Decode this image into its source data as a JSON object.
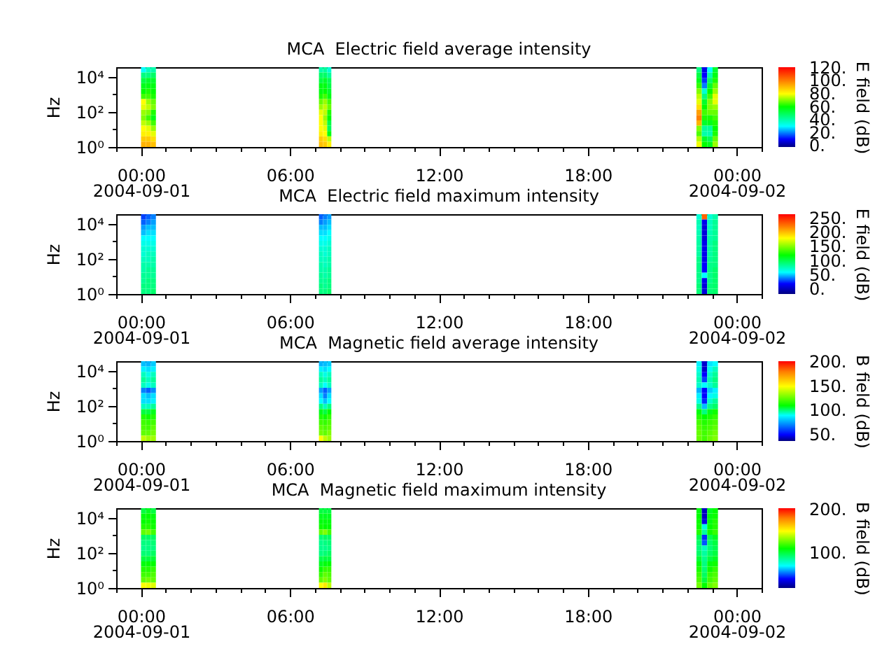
{
  "chart_data": [
    {
      "type": "heatmap",
      "title": "MCA  Electric field average intensity",
      "ylabel": "Hz",
      "clabel": "E field (dB)",
      "log": "y",
      "x": [
        "2004-09-01T00:06",
        "2004-09-01T00:18",
        "2004-09-01T00:30",
        "2004-09-01T00:42",
        "2004-09-01T07:05",
        "2004-09-01T07:15",
        "2004-09-01T07:25",
        "2004-09-01T07:35",
        "2004-09-01T07:45",
        "2004-09-01T22:16",
        "2004-09-01T22:29",
        "2004-09-01T22:42",
        "2004-09-01T22:55",
        "2004-09-01T23:08"
      ],
      "xlim": [
        "2004-08-31T23:00",
        "2004-09-02T01:00"
      ],
      "xticks": [
        {
          "value": "2004-08-31T23:00",
          "label": null
        },
        {
          "value": "2004-09-01T00:00",
          "label": "00:00\n2004-09-01"
        },
        {
          "value": "2004-09-01T01:00",
          "label": null
        },
        {
          "value": "2004-09-01T02:00",
          "label": null
        },
        {
          "value": "2004-09-01T03:00",
          "label": null
        },
        {
          "value": "2004-09-01T04:00",
          "label": null
        },
        {
          "value": "2004-09-01T05:00",
          "label": null
        },
        {
          "value": "2004-09-01T06:00",
          "label": "06:00"
        },
        {
          "value": "2004-09-01T07:00",
          "label": null
        },
        {
          "value": "2004-09-01T08:00",
          "label": null
        },
        {
          "value": "2004-09-01T09:00",
          "label": null
        },
        {
          "value": "2004-09-01T10:00",
          "label": null
        },
        {
          "value": "2004-09-01T11:00",
          "label": null
        },
        {
          "value": "2004-09-01T12:00",
          "label": "12:00"
        },
        {
          "value": "2004-09-01T13:00",
          "label": null
        },
        {
          "value": "2004-09-01T14:00",
          "label": null
        },
        {
          "value": "2004-09-01T15:00",
          "label": null
        },
        {
          "value": "2004-09-01T16:00",
          "label": null
        },
        {
          "value": "2004-09-01T17:00",
          "label": null
        },
        {
          "value": "2004-09-01T18:00",
          "label": "18:00"
        },
        {
          "value": "2004-09-01T19:00",
          "label": null
        },
        {
          "value": "2004-09-01T20:00",
          "label": null
        },
        {
          "value": "2004-09-01T21:00",
          "label": null
        },
        {
          "value": "2004-09-01T22:00",
          "label": null
        },
        {
          "value": "2004-09-01T23:00",
          "label": null
        },
        {
          "value": "2004-09-02T00:00",
          "label": "00:00\n2004-09-02"
        },
        {
          "value": "2004-09-02T01:00",
          "label": null
        }
      ],
      "ylim": [
        1,
        35000
      ],
      "yticks": [
        {
          "value": 1,
          "label": "10⁰"
        },
        {
          "value": 10,
          "label": null
        },
        {
          "value": 100,
          "label": "10²"
        },
        {
          "value": 1000,
          "label": null
        },
        {
          "value": 10000,
          "label": "10⁴"
        }
      ],
      "clim": [
        -2,
        121
      ],
      "cticks": [
        {
          "value": 0,
          "label": "0."
        },
        {
          "value": 20,
          "label": "20."
        },
        {
          "value": 40,
          "label": "40."
        },
        {
          "value": 60,
          "label": "60."
        },
        {
          "value": 80,
          "label": "80."
        },
        {
          "value": 100,
          "label": "100."
        },
        {
          "value": 120,
          "label": "120."
        }
      ],
      "cells": [
        [
          30,
          38,
          40,
          null,
          null,
          40,
          42,
          35,
          null,
          null,
          45,
          8,
          30,
          55
        ],
        [
          45,
          45,
          48,
          null,
          null,
          48,
          48,
          42,
          null,
          null,
          52,
          10,
          40,
          58
        ],
        [
          52,
          55,
          55,
          null,
          null,
          52,
          55,
          50,
          null,
          null,
          57,
          14,
          48,
          62
        ],
        [
          57,
          58,
          58,
          null,
          null,
          58,
          58,
          52,
          null,
          null,
          64,
          20,
          55,
          68
        ],
        [
          60,
          62,
          60,
          null,
          null,
          58,
          60,
          55,
          null,
          null,
          70,
          35,
          60,
          72
        ],
        [
          65,
          65,
          62,
          null,
          null,
          62,
          65,
          58,
          null,
          null,
          75,
          45,
          65,
          78
        ],
        [
          80,
          72,
          68,
          null,
          null,
          68,
          72,
          65,
          null,
          null,
          78,
          55,
          70,
          78
        ],
        [
          78,
          75,
          70,
          null,
          null,
          72,
          75,
          68,
          null,
          null,
          85,
          60,
          70,
          72
        ],
        [
          72,
          70,
          62,
          null,
          null,
          78,
          75,
          62,
          null,
          null,
          95,
          65,
          68,
          68
        ],
        [
          70,
          65,
          58,
          null,
          null,
          80,
          72,
          60,
          null,
          null,
          100,
          62,
          62,
          65
        ],
        [
          75,
          72,
          65,
          null,
          null,
          80,
          75,
          52,
          null,
          null,
          92,
          55,
          57,
          62
        ],
        [
          80,
          78,
          72,
          null,
          null,
          80,
          78,
          50,
          null,
          null,
          70,
          42,
          42,
          60
        ],
        [
          82,
          82,
          78,
          null,
          null,
          82,
          80,
          58,
          null,
          null,
          66,
          40,
          40,
          62
        ],
        [
          88,
          88,
          85,
          null,
          null,
          88,
          85,
          75,
          null,
          null,
          74,
          55,
          50,
          68
        ],
        [
          92,
          92,
          90,
          null,
          null,
          90,
          88,
          82,
          null,
          null,
          79,
          60,
          57,
          72
        ]
      ]
    },
    {
      "type": "heatmap",
      "title": "MCA  Electric field maximum intensity",
      "ylabel": "Hz",
      "clabel": "E field (dB)",
      "log": "y",
      "x": [
        "2004-09-01T00:06",
        "2004-09-01T00:18",
        "2004-09-01T00:30",
        "2004-09-01T00:42",
        "2004-09-01T07:05",
        "2004-09-01T07:15",
        "2004-09-01T07:25",
        "2004-09-01T07:35",
        "2004-09-01T07:45",
        "2004-09-01T22:16",
        "2004-09-01T22:29",
        "2004-09-01T22:42",
        "2004-09-01T22:55",
        "2004-09-01T23:08"
      ],
      "xlim": [
        "2004-08-31T23:00",
        "2004-09-02T01:00"
      ],
      "xticks": [
        {
          "value": "2004-08-31T23:00",
          "label": null
        },
        {
          "value": "2004-09-01T00:00",
          "label": "00:00\n2004-09-01"
        },
        {
          "value": "2004-09-01T01:00",
          "label": null
        },
        {
          "value": "2004-09-01T02:00",
          "label": null
        },
        {
          "value": "2004-09-01T03:00",
          "label": null
        },
        {
          "value": "2004-09-01T04:00",
          "label": null
        },
        {
          "value": "2004-09-01T05:00",
          "label": null
        },
        {
          "value": "2004-09-01T06:00",
          "label": "06:00"
        },
        {
          "value": "2004-09-01T07:00",
          "label": null
        },
        {
          "value": "2004-09-01T08:00",
          "label": null
        },
        {
          "value": "2004-09-01T09:00",
          "label": null
        },
        {
          "value": "2004-09-01T10:00",
          "label": null
        },
        {
          "value": "2004-09-01T11:00",
          "label": null
        },
        {
          "value": "2004-09-01T12:00",
          "label": "12:00"
        },
        {
          "value": "2004-09-01T13:00",
          "label": null
        },
        {
          "value": "2004-09-01T14:00",
          "label": null
        },
        {
          "value": "2004-09-01T15:00",
          "label": null
        },
        {
          "value": "2004-09-01T16:00",
          "label": null
        },
        {
          "value": "2004-09-01T17:00",
          "label": null
        },
        {
          "value": "2004-09-01T18:00",
          "label": "18:00"
        },
        {
          "value": "2004-09-01T19:00",
          "label": null
        },
        {
          "value": "2004-09-01T20:00",
          "label": null
        },
        {
          "value": "2004-09-01T21:00",
          "label": null
        },
        {
          "value": "2004-09-01T22:00",
          "label": null
        },
        {
          "value": "2004-09-01T23:00",
          "label": null
        },
        {
          "value": "2004-09-02T00:00",
          "label": "00:00\n2004-09-02"
        },
        {
          "value": "2004-09-02T01:00",
          "label": null
        }
      ],
      "ylim": [
        1,
        35000
      ],
      "yticks": [
        {
          "value": 1,
          "label": "10⁰"
        },
        {
          "value": 10,
          "label": null
        },
        {
          "value": 100,
          "label": "10²"
        },
        {
          "value": 1000,
          "label": null
        },
        {
          "value": 10000,
          "label": "10⁴"
        }
      ],
      "clim": [
        -16,
        264
      ],
      "cticks": [
        {
          "value": 0,
          "label": "0."
        },
        {
          "value": 50,
          "label": "50."
        },
        {
          "value": 100,
          "label": "100."
        },
        {
          "value": 150,
          "label": "150."
        },
        {
          "value": 200,
          "label": "200."
        },
        {
          "value": 250,
          "label": "250."
        }
      ],
      "cells": [
        [
          30,
          35,
          40,
          null,
          null,
          35,
          40,
          45,
          null,
          null,
          70,
          230,
          70,
          80
        ],
        [
          35,
          40,
          45,
          null,
          null,
          40,
          45,
          50,
          null,
          null,
          78,
          15,
          75,
          85
        ],
        [
          45,
          50,
          50,
          null,
          null,
          50,
          50,
          55,
          null,
          null,
          75,
          10,
          75,
          85
        ],
        [
          50,
          55,
          55,
          null,
          null,
          55,
          55,
          60,
          null,
          null,
          78,
          10,
          78,
          85
        ],
        [
          60,
          60,
          60,
          null,
          null,
          60,
          60,
          65,
          null,
          null,
          80,
          10,
          80,
          85
        ],
        [
          65,
          65,
          65,
          null,
          null,
          65,
          65,
          70,
          null,
          null,
          82,
          15,
          82,
          90
        ],
        [
          70,
          70,
          70,
          null,
          null,
          70,
          70,
          75,
          null,
          null,
          82,
          15,
          82,
          90
        ],
        [
          70,
          75,
          75,
          null,
          null,
          75,
          70,
          75,
          null,
          null,
          82,
          15,
          82,
          90
        ],
        [
          75,
          75,
          80,
          null,
          null,
          75,
          75,
          80,
          null,
          null,
          88,
          15,
          85,
          90
        ],
        [
          80,
          80,
          80,
          null,
          null,
          80,
          75,
          80,
          null,
          null,
          88,
          20,
          88,
          90
        ],
        [
          80,
          85,
          85,
          null,
          null,
          80,
          80,
          85,
          null,
          null,
          88,
          20,
          88,
          95
        ],
        [
          85,
          85,
          85,
          null,
          null,
          85,
          80,
          85,
          null,
          null,
          88,
          60,
          88,
          95
        ],
        [
          85,
          90,
          90,
          null,
          null,
          85,
          85,
          90,
          null,
          null,
          88,
          15,
          88,
          95
        ],
        [
          90,
          90,
          90,
          null,
          null,
          90,
          85,
          90,
          null,
          null,
          92,
          10,
          92,
          95
        ],
        [
          90,
          90,
          95,
          null,
          null,
          90,
          90,
          95,
          null,
          null,
          92,
          10,
          92,
          95
        ]
      ]
    },
    {
      "type": "heatmap",
      "title": "MCA  Magnetic field average intensity",
      "ylabel": "Hz",
      "clabel": "B field (dB)",
      "log": "y",
      "x": [
        "2004-09-01T00:06",
        "2004-09-01T00:18",
        "2004-09-01T00:30",
        "2004-09-01T00:42",
        "2004-09-01T07:05",
        "2004-09-01T07:15",
        "2004-09-01T07:25",
        "2004-09-01T07:35",
        "2004-09-01T07:45",
        "2004-09-01T22:16",
        "2004-09-01T22:29",
        "2004-09-01T22:42",
        "2004-09-01T22:55",
        "2004-09-01T23:08"
      ],
      "xlim": [
        "2004-08-31T23:00",
        "2004-09-02T01:00"
      ],
      "xticks": [
        {
          "value": "2004-08-31T23:00",
          "label": null
        },
        {
          "value": "2004-09-01T00:00",
          "label": "00:00\n2004-09-01"
        },
        {
          "value": "2004-09-01T01:00",
          "label": null
        },
        {
          "value": "2004-09-01T02:00",
          "label": null
        },
        {
          "value": "2004-09-01T03:00",
          "label": null
        },
        {
          "value": "2004-09-01T04:00",
          "label": null
        },
        {
          "value": "2004-09-01T05:00",
          "label": null
        },
        {
          "value": "2004-09-01T06:00",
          "label": "06:00"
        },
        {
          "value": "2004-09-01T07:00",
          "label": null
        },
        {
          "value": "2004-09-01T08:00",
          "label": null
        },
        {
          "value": "2004-09-01T09:00",
          "label": null
        },
        {
          "value": "2004-09-01T10:00",
          "label": null
        },
        {
          "value": "2004-09-01T11:00",
          "label": null
        },
        {
          "value": "2004-09-01T12:00",
          "label": "12:00"
        },
        {
          "value": "2004-09-01T13:00",
          "label": null
        },
        {
          "value": "2004-09-01T14:00",
          "label": null
        },
        {
          "value": "2004-09-01T15:00",
          "label": null
        },
        {
          "value": "2004-09-01T16:00",
          "label": null
        },
        {
          "value": "2004-09-01T17:00",
          "label": null
        },
        {
          "value": "2004-09-01T18:00",
          "label": "18:00"
        },
        {
          "value": "2004-09-01T19:00",
          "label": null
        },
        {
          "value": "2004-09-01T20:00",
          "label": null
        },
        {
          "value": "2004-09-01T21:00",
          "label": null
        },
        {
          "value": "2004-09-01T22:00",
          "label": null
        },
        {
          "value": "2004-09-01T23:00",
          "label": null
        },
        {
          "value": "2004-09-02T00:00",
          "label": "00:00\n2004-09-02"
        },
        {
          "value": "2004-09-02T01:00",
          "label": null
        }
      ],
      "ylim": [
        1,
        35000
      ],
      "yticks": [
        {
          "value": 1,
          "label": "10⁰"
        },
        {
          "value": 10,
          "label": null
        },
        {
          "value": 100,
          "label": "10²"
        },
        {
          "value": 1000,
          "label": null
        },
        {
          "value": 10000,
          "label": "10⁴"
        }
      ],
      "clim": [
        37,
        202
      ],
      "cticks": [
        {
          "value": 50,
          "label": "50."
        },
        {
          "value": 100,
          "label": "100."
        },
        {
          "value": 150,
          "label": "150."
        },
        {
          "value": 200,
          "label": "200."
        }
      ],
      "cells": [
        [
          80,
          78,
          82,
          null,
          null,
          78,
          80,
          82,
          null,
          null,
          88,
          45,
          86,
          90
        ],
        [
          88,
          85,
          88,
          null,
          null,
          88,
          85,
          90,
          null,
          null,
          92,
          45,
          91,
          95
        ],
        [
          95,
          92,
          95,
          null,
          null,
          95,
          92,
          95,
          null,
          null,
          94,
          50,
          94,
          98
        ],
        [
          98,
          95,
          98,
          null,
          null,
          98,
          95,
          98,
          null,
          null,
          96,
          60,
          96,
          100
        ],
        [
          95,
          92,
          95,
          null,
          null,
          95,
          90,
          95,
          null,
          null,
          94,
          90,
          94,
          98
        ],
        [
          70,
          65,
          72,
          null,
          null,
          75,
          65,
          75,
          null,
          null,
          78,
          50,
          82,
          88
        ],
        [
          85,
          80,
          85,
          null,
          null,
          85,
          70,
          85,
          null,
          null,
          88,
          50,
          89,
          92
        ],
        [
          85,
          85,
          88,
          null,
          null,
          90,
          80,
          90,
          null,
          null,
          92,
          55,
          94,
          98
        ],
        [
          95,
          95,
          98,
          null,
          null,
          100,
          95,
          100,
          null,
          null,
          99,
          80,
          99,
          102
        ],
        [
          105,
          105,
          108,
          null,
          null,
          108,
          105,
          110,
          null,
          null,
          109,
          100,
          108,
          112
        ],
        [
          115,
          112,
          115,
          null,
          null,
          115,
          112,
          118,
          null,
          null,
          116,
          110,
          114,
          118
        ],
        [
          120,
          118,
          120,
          null,
          null,
          120,
          118,
          122,
          null,
          null,
          121,
          115,
          119,
          122
        ],
        [
          122,
          120,
          125,
          null,
          null,
          125,
          122,
          125,
          null,
          null,
          124,
          118,
          121,
          125
        ],
        [
          125,
          125,
          128,
          null,
          null,
          128,
          125,
          130,
          null,
          null,
          126,
          120,
          124,
          128
        ],
        [
          140,
          135,
          135,
          null,
          null,
          150,
          140,
          135,
          null,
          null,
          126,
          120,
          126,
          130
        ]
      ]
    },
    {
      "type": "heatmap",
      "title": "MCA  Magnetic field maximum intensity",
      "ylabel": "Hz",
      "clabel": "B field (dB)",
      "log": "y",
      "x": [
        "2004-09-01T00:06",
        "2004-09-01T00:18",
        "2004-09-01T00:30",
        "2004-09-01T00:42",
        "2004-09-01T07:05",
        "2004-09-01T07:15",
        "2004-09-01T07:25",
        "2004-09-01T07:35",
        "2004-09-01T07:45",
        "2004-09-01T22:16",
        "2004-09-01T22:29",
        "2004-09-01T22:42",
        "2004-09-01T22:55",
        "2004-09-01T23:08"
      ],
      "xlim": [
        "2004-08-31T23:00",
        "2004-09-02T01:00"
      ],
      "xticks": [
        {
          "value": "2004-08-31T23:00",
          "label": null
        },
        {
          "value": "2004-09-01T00:00",
          "label": "00:00\n2004-09-01"
        },
        {
          "value": "2004-09-01T01:00",
          "label": null
        },
        {
          "value": "2004-09-01T02:00",
          "label": null
        },
        {
          "value": "2004-09-01T03:00",
          "label": null
        },
        {
          "value": "2004-09-01T04:00",
          "label": null
        },
        {
          "value": "2004-09-01T05:00",
          "label": null
        },
        {
          "value": "2004-09-01T06:00",
          "label": "06:00"
        },
        {
          "value": "2004-09-01T07:00",
          "label": null
        },
        {
          "value": "2004-09-01T08:00",
          "label": null
        },
        {
          "value": "2004-09-01T09:00",
          "label": null
        },
        {
          "value": "2004-09-01T10:00",
          "label": null
        },
        {
          "value": "2004-09-01T11:00",
          "label": null
        },
        {
          "value": "2004-09-01T12:00",
          "label": "12:00"
        },
        {
          "value": "2004-09-01T13:00",
          "label": null
        },
        {
          "value": "2004-09-01T14:00",
          "label": null
        },
        {
          "value": "2004-09-01T15:00",
          "label": null
        },
        {
          "value": "2004-09-01T16:00",
          "label": null
        },
        {
          "value": "2004-09-01T17:00",
          "label": null
        },
        {
          "value": "2004-09-01T18:00",
          "label": "18:00"
        },
        {
          "value": "2004-09-01T19:00",
          "label": null
        },
        {
          "value": "2004-09-01T20:00",
          "label": null
        },
        {
          "value": "2004-09-01T21:00",
          "label": null
        },
        {
          "value": "2004-09-01T22:00",
          "label": null
        },
        {
          "value": "2004-09-01T23:00",
          "label": null
        },
        {
          "value": "2004-09-02T00:00",
          "label": "00:00\n2004-09-02"
        },
        {
          "value": "2004-09-02T01:00",
          "label": null
        }
      ],
      "ylim": [
        1,
        35000
      ],
      "yticks": [
        {
          "value": 1,
          "label": "10⁰"
        },
        {
          "value": 10,
          "label": null
        },
        {
          "value": 100,
          "label": "10²"
        },
        {
          "value": 1000,
          "label": null
        },
        {
          "value": 10000,
          "label": "10⁴"
        }
      ],
      "clim": [
        19,
        203
      ],
      "cticks": [
        {
          "value": 100,
          "label": "100."
        },
        {
          "value": 200,
          "label": "200."
        }
      ],
      "cells": [
        [
          100,
          105,
          100,
          null,
          null,
          100,
          100,
          100,
          null,
          null,
          108,
          30,
          105,
          110
        ],
        [
          108,
          110,
          108,
          null,
          null,
          105,
          105,
          105,
          null,
          null,
          110,
          30,
          108,
          112
        ],
        [
          110,
          112,
          110,
          null,
          null,
          108,
          108,
          108,
          null,
          null,
          111,
          35,
          108,
          115
        ],
        [
          115,
          115,
          112,
          null,
          null,
          112,
          110,
          110,
          null,
          null,
          112,
          75,
          110,
          115
        ],
        [
          125,
          128,
          120,
          null,
          null,
          125,
          130,
          120,
          null,
          null,
          115,
          85,
          112,
          118
        ],
        [
          95,
          95,
          95,
          null,
          null,
          92,
          95,
          95,
          null,
          null,
          98,
          45,
          98,
          105
        ],
        [
          90,
          90,
          92,
          null,
          null,
          88,
          90,
          92,
          null,
          null,
          94,
          50,
          94,
          100
        ],
        [
          88,
          90,
          90,
          null,
          null,
          88,
          88,
          90,
          null,
          null,
          91,
          80,
          92,
          98
        ],
        [
          92,
          92,
          95,
          null,
          null,
          90,
          92,
          95,
          null,
          null,
          94,
          85,
          95,
          100
        ],
        [
          100,
          100,
          102,
          null,
          null,
          98,
          100,
          100,
          null,
          null,
          101,
          88,
          100,
          105
        ],
        [
          108,
          110,
          110,
          null,
          null,
          105,
          108,
          110,
          null,
          null,
          108,
          90,
          108,
          112
        ],
        [
          115,
          115,
          118,
          null,
          null,
          112,
          118,
          118,
          null,
          null,
          114,
          92,
          112,
          118
        ],
        [
          120,
          120,
          122,
          null,
          null,
          118,
          125,
          122,
          null,
          null,
          119,
          95,
          118,
          122
        ],
        [
          125,
          128,
          125,
          null,
          null,
          125,
          130,
          125,
          null,
          null,
          122,
          100,
          120,
          125
        ],
        [
          150,
          148,
          145,
          null,
          null,
          150,
          155,
          140,
          null,
          null,
          128,
          110,
          125,
          130
        ]
      ]
    }
  ]
}
